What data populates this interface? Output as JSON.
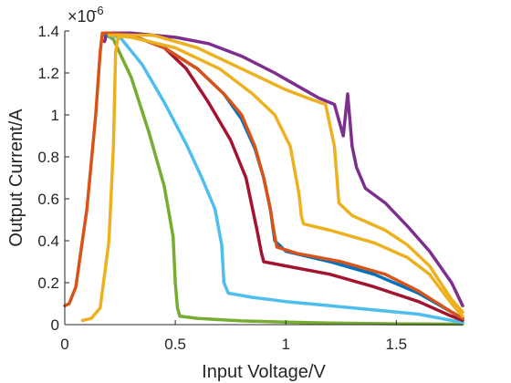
{
  "chart_data": {
    "type": "line",
    "title": "",
    "xlabel": "Input Voltage/V",
    "ylabel": "Output Current/A",
    "y_exponent_base": "×10",
    "y_exponent_power": "-6",
    "xlim": [
      0,
      1.8
    ],
    "ylim": [
      0,
      1.4
    ],
    "x_ticks": [
      "0",
      "0.5",
      "1",
      "1.5"
    ],
    "y_ticks": [
      "0",
      "0.2",
      "0.4",
      "0.6",
      "0.8",
      "1",
      "1.2",
      "1.4"
    ],
    "grid": false,
    "legend": "none",
    "series": [
      {
        "color": "#7E2F8E",
        "x": [
          0.18,
          0.19,
          0.3,
          0.5,
          0.65,
          0.8,
          0.95,
          1.05,
          1.15,
          1.22,
          1.26,
          1.28,
          1.3,
          1.32,
          1.36,
          1.45,
          1.55,
          1.65,
          1.75,
          1.8
        ],
        "y": [
          1.35,
          1.39,
          1.39,
          1.37,
          1.34,
          1.28,
          1.2,
          1.14,
          1.08,
          1.05,
          0.9,
          1.1,
          0.85,
          0.75,
          0.65,
          0.58,
          0.47,
          0.35,
          0.2,
          0.09
        ]
      },
      {
        "color": "#77AC30",
        "x": [
          0.18,
          0.19,
          0.22,
          0.3,
          0.38,
          0.45,
          0.49,
          0.5,
          0.51,
          0.52,
          0.6,
          0.8,
          1.0,
          1.2,
          1.5,
          1.8
        ],
        "y": [
          1.38,
          1.38,
          1.36,
          1.18,
          0.92,
          0.66,
          0.42,
          0.2,
          0.08,
          0.04,
          0.03,
          0.018,
          0.012,
          0.008,
          0.004,
          0.002
        ]
      },
      {
        "color": "#4DBEEE",
        "x": [
          0.18,
          0.19,
          0.25,
          0.35,
          0.45,
          0.55,
          0.62,
          0.68,
          0.71,
          0.72,
          0.74,
          0.85,
          1.0,
          1.2,
          1.4,
          1.6,
          1.7,
          1.8
        ],
        "y": [
          1.38,
          1.38,
          1.37,
          1.24,
          1.06,
          0.86,
          0.7,
          0.55,
          0.38,
          0.2,
          0.15,
          0.13,
          0.11,
          0.09,
          0.07,
          0.05,
          0.03,
          0.01
        ]
      },
      {
        "color": "#A2142F",
        "x": [
          0.18,
          0.19,
          0.3,
          0.45,
          0.55,
          0.65,
          0.75,
          0.82,
          0.87,
          0.89,
          0.9,
          1.0,
          1.2,
          1.4,
          1.6,
          1.75,
          1.8
        ],
        "y": [
          1.38,
          1.38,
          1.38,
          1.32,
          1.22,
          1.06,
          0.88,
          0.7,
          0.45,
          0.34,
          0.3,
          0.28,
          0.24,
          0.18,
          0.11,
          0.04,
          0.02
        ]
      },
      {
        "color": "#0072BD",
        "x": [
          0.18,
          0.19,
          0.3,
          0.45,
          0.6,
          0.72,
          0.8,
          0.86,
          0.9,
          0.93,
          0.95,
          1.0,
          1.2,
          1.4,
          1.6,
          1.75,
          1.8
        ],
        "y": [
          1.38,
          1.38,
          1.38,
          1.32,
          1.22,
          1.1,
          0.98,
          0.84,
          0.7,
          0.55,
          0.4,
          0.35,
          0.3,
          0.24,
          0.15,
          0.06,
          0.03
        ]
      },
      {
        "color": "#D95319",
        "x": [
          0.17,
          0.18,
          0.2,
          0.3,
          0.45,
          0.6,
          0.72,
          0.8,
          0.86,
          0.9,
          0.93,
          0.95,
          0.96,
          1.05,
          1.25,
          1.45,
          1.6,
          1.75,
          1.8
        ],
        "y": [
          1.38,
          1.39,
          1.39,
          1.38,
          1.32,
          1.22,
          1.1,
          1.0,
          0.85,
          0.7,
          0.55,
          0.42,
          0.37,
          0.34,
          0.3,
          0.24,
          0.16,
          0.06,
          0.03
        ]
      },
      {
        "color": "#EDB120",
        "x": [
          0.2,
          0.21,
          0.3,
          0.5,
          0.7,
          0.85,
          0.95,
          1.02,
          1.06,
          1.07,
          1.08,
          1.2,
          1.4,
          1.55,
          1.65,
          1.75,
          1.8
        ],
        "y": [
          1.38,
          1.38,
          1.37,
          1.32,
          1.22,
          1.1,
          1.0,
          0.85,
          0.62,
          0.52,
          0.48,
          0.45,
          0.39,
          0.32,
          0.24,
          0.1,
          0.04
        ]
      },
      {
        "color": "#EDB120",
        "x": [
          0.22,
          0.23,
          0.4,
          0.6,
          0.8,
          1.0,
          1.1,
          1.18,
          1.22,
          1.24,
          1.3,
          1.45,
          1.55,
          1.65,
          1.75,
          1.8
        ],
        "y": [
          1.38,
          1.38,
          1.38,
          1.32,
          1.22,
          1.12,
          1.08,
          1.05,
          0.85,
          0.58,
          0.52,
          0.45,
          0.38,
          0.28,
          0.12,
          0.06
        ]
      },
      {
        "color": "#D95319",
        "x": [
          0,
          0.02,
          0.05,
          0.1,
          0.14,
          0.16,
          0.17
        ],
        "y": [
          0.09,
          0.1,
          0.18,
          0.55,
          1.0,
          1.3,
          1.39
        ]
      },
      {
        "color": "#EDB120",
        "x": [
          0.08,
          0.12,
          0.16,
          0.2,
          0.22,
          0.23,
          0.24,
          0.26
        ],
        "y": [
          0.02,
          0.03,
          0.08,
          0.4,
          0.85,
          1.3,
          1.36,
          1.38
        ]
      }
    ]
  }
}
